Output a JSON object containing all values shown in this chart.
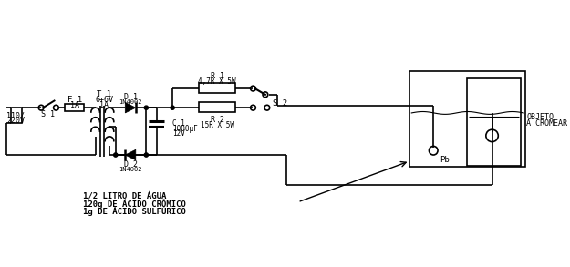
{
  "bg": "#ffffff",
  "labels": {
    "S1": "S 1",
    "F1_1": "F 1",
    "F1_2": "1A",
    "T1_1": "T 1",
    "T1_2": "6+6V",
    "T1_3": "1A",
    "D1_1": "D 1",
    "D1_2": "1N4002",
    "D2_1": "D 2",
    "D2_2": "1N4002",
    "R1_1": "R 1",
    "R1_2": "4,7R X 5W",
    "R2_1": "R 2",
    "R2_2": "15R X 5W",
    "C1_1": "C 1",
    "C1_2": "1000μF",
    "C1_3": "12V",
    "S2": "S 2",
    "voltage_1": "110/",
    "voltage_2": "220V",
    "Pb": "Pb",
    "objeto_1": "OBJETO",
    "objeto_2": "A CROMEAR",
    "sol_1": "1/2 LITRO DE ÁGUA",
    "sol_2": "120g DE ÁCIDO CRÔMICO",
    "sol_3": "1g DE ÁCIDO SULFÚRICO"
  }
}
